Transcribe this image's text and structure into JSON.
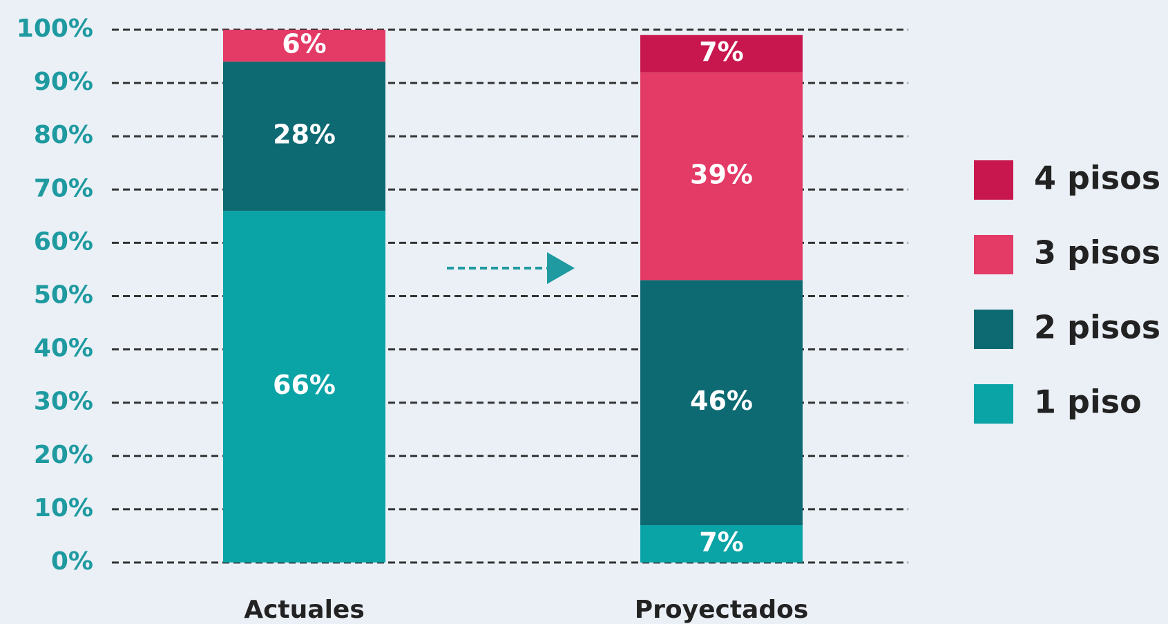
{
  "chart_data": {
    "type": "stacked_bar",
    "categories": [
      "Actuales",
      "Proyectados"
    ],
    "series": [
      {
        "name": "1 piso",
        "color": "#0aa3a6",
        "values": [
          66,
          7
        ],
        "value_labels": [
          "66%",
          "7%"
        ]
      },
      {
        "name": "2 pisos",
        "color": "#0d6a72",
        "values": [
          28,
          46
        ],
        "value_labels": [
          "28%",
          "46%"
        ]
      },
      {
        "name": "3 pisos",
        "color": "#e33a66",
        "values": [
          6,
          39
        ],
        "value_labels": [
          "6%",
          "39%"
        ]
      },
      {
        "name": "4 pisos",
        "color": "#c8174e",
        "values": [
          null,
          7
        ],
        "value_labels": [
          null,
          "7%"
        ]
      }
    ],
    "ylim": [
      0,
      100
    ],
    "yticks": [
      {
        "value": 0,
        "label": "0%"
      },
      {
        "value": 10,
        "label": "10%"
      },
      {
        "value": 20,
        "label": "20%"
      },
      {
        "value": 30,
        "label": "30%"
      },
      {
        "value": 40,
        "label": "40%"
      },
      {
        "value": 50,
        "label": "50%"
      },
      {
        "value": 60,
        "label": "60%"
      },
      {
        "value": 70,
        "label": "70%"
      },
      {
        "value": 80,
        "label": "80%"
      },
      {
        "value": 90,
        "label": "90%"
      },
      {
        "value": 100,
        "label": "100%"
      }
    ],
    "grid": true,
    "legend": "right"
  }
}
